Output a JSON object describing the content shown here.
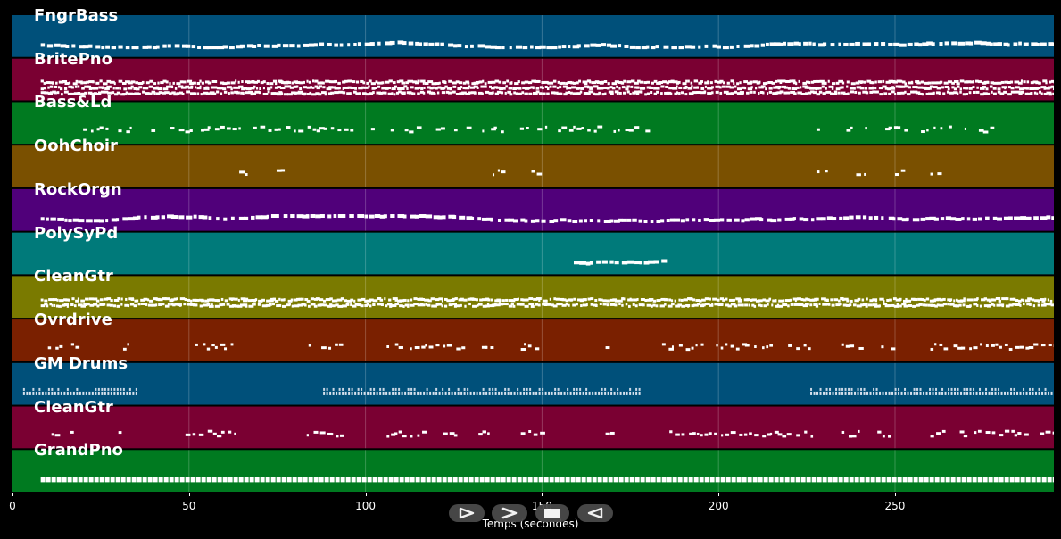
{
  "chart_data": {
    "type": "piano-roll",
    "xlabel": "Temps (secondes)",
    "xlim": [
      0,
      295
    ],
    "xticks": [
      0,
      50,
      100,
      150,
      200,
      250
    ],
    "grid": true,
    "tracks": [
      {
        "name": "FngrBass",
        "color": "#00507a",
        "style": "steady",
        "activity": [
          [
            8,
            295
          ]
        ],
        "lanes": 1
      },
      {
        "name": "BritePno",
        "color": "#7a0032",
        "style": "dense",
        "activity": [
          [
            8,
            295
          ]
        ],
        "lanes": 3
      },
      {
        "name": "Bass&Ld",
        "color": "#007a20",
        "style": "sparse",
        "activity": [
          [
            20,
            180
          ],
          [
            228,
            278
          ]
        ],
        "lanes": 1
      },
      {
        "name": "OohChoir",
        "color": "#7a5000",
        "style": "sparse",
        "activity": [
          [
            63,
            66
          ],
          [
            74,
            77
          ],
          [
            136,
            139
          ],
          [
            147,
            150
          ],
          [
            228,
            231
          ],
          [
            239,
            242
          ],
          [
            250,
            253
          ],
          [
            260,
            263
          ]
        ],
        "lanes": 1
      },
      {
        "name": "RockOrgn",
        "color": "#50007a",
        "style": "steady",
        "activity": [
          [
            8,
            295
          ]
        ],
        "lanes": 1
      },
      {
        "name": "PolySyPd",
        "color": "#007a7a",
        "style": "steady",
        "activity": [
          [
            159,
            184
          ]
        ],
        "lanes": 1
      },
      {
        "name": "CleanGtr",
        "color": "#7a7a00",
        "style": "dense",
        "activity": [
          [
            8,
            295
          ]
        ],
        "lanes": 2
      },
      {
        "name": "Ovrdrive",
        "color": "#7a2000",
        "style": "sparse",
        "activity": [
          [
            8,
            20
          ],
          [
            30,
            33
          ],
          [
            49,
            64
          ],
          [
            82,
            93
          ],
          [
            106,
            128
          ],
          [
            132,
            137
          ],
          [
            144,
            150
          ],
          [
            158,
            160
          ],
          [
            168,
            171
          ],
          [
            184,
            220
          ],
          [
            222,
            227
          ],
          [
            235,
            240
          ],
          [
            245,
            250
          ],
          [
            260,
            295
          ]
        ],
        "lanes": 1
      },
      {
        "name": "GM Drums",
        "color": "#00507a",
        "style": "drums",
        "activity": [
          [
            3,
            35
          ],
          [
            88,
            178
          ],
          [
            226,
            295
          ]
        ],
        "lanes": 2
      },
      {
        "name": "CleanGtr",
        "color": "#7a0032",
        "style": "sparse",
        "activity": [
          [
            8,
            20
          ],
          [
            30,
            33
          ],
          [
            49,
            64
          ],
          [
            82,
            93
          ],
          [
            106,
            128
          ],
          [
            132,
            137
          ],
          [
            144,
            150
          ],
          [
            158,
            160
          ],
          [
            168,
            171
          ],
          [
            184,
            220
          ],
          [
            222,
            227
          ],
          [
            235,
            240
          ],
          [
            245,
            250
          ],
          [
            260,
            295
          ]
        ],
        "lanes": 1
      },
      {
        "name": "GrandPno",
        "color": "#007a20",
        "style": "solid",
        "activity": [
          [
            8,
            295
          ]
        ],
        "lanes": 1
      }
    ]
  },
  "controls": [
    {
      "name": "play-button",
      "glyph": "play"
    },
    {
      "name": "forward-button",
      "glyph": "forward"
    },
    {
      "name": "stop-button",
      "glyph": "stop"
    },
    {
      "name": "rewind-button",
      "glyph": "back"
    }
  ]
}
